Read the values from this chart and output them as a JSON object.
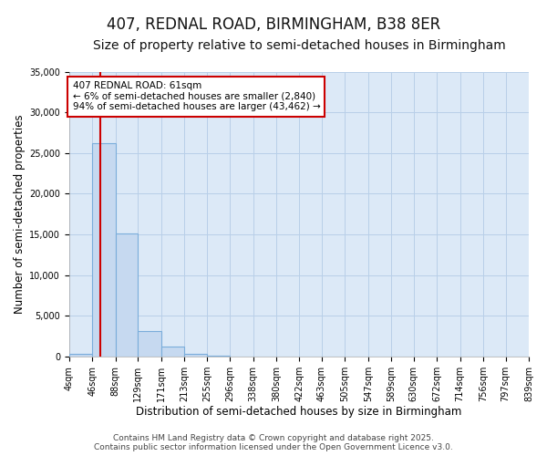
{
  "title_line1": "407, REDNAL ROAD, BIRMINGHAM, B38 8ER",
  "title_line2": "Size of property relative to semi-detached houses in Birmingham",
  "xlabel": "Distribution of semi-detached houses by size in Birmingham",
  "ylabel": "Number of semi-detached properties",
  "annotation_title": "407 REDNAL ROAD: 61sqm",
  "annotation_line2": "← 6% of semi-detached houses are smaller (2,840)",
  "annotation_line3": "94% of semi-detached houses are larger (43,462) →",
  "red_line_x": 61,
  "bin_edges": [
    4,
    46,
    88,
    129,
    171,
    213,
    255,
    296,
    338,
    380,
    422,
    463,
    505,
    547,
    589,
    630,
    672,
    714,
    756,
    797,
    839
  ],
  "bar_heights": [
    300,
    26200,
    15100,
    3200,
    1200,
    300,
    150,
    50,
    20,
    10,
    5,
    5,
    5,
    5,
    5,
    5,
    5,
    5,
    5,
    5
  ],
  "bar_color": "#c6d9f0",
  "bar_edge_color": "#7aaddb",
  "bar_alpha": 1.0,
  "red_line_color": "#cc0000",
  "annotation_box_color": "#ffffff",
  "annotation_box_edge_color": "#cc0000",
  "grid_color": "#b8cfe8",
  "background_color": "#ffffff",
  "plot_bg_color": "#dce9f7",
  "ylim": [
    0,
    35000
  ],
  "yticks": [
    0,
    5000,
    10000,
    15000,
    20000,
    25000,
    30000,
    35000
  ],
  "footer_line1": "Contains HM Land Registry data © Crown copyright and database right 2025.",
  "footer_line2": "Contains public sector information licensed under the Open Government Licence v3.0.",
  "title_fontsize": 12,
  "subtitle_fontsize": 10,
  "axis_label_fontsize": 8.5,
  "tick_fontsize": 7,
  "annotation_fontsize": 7.5,
  "footer_fontsize": 6.5
}
